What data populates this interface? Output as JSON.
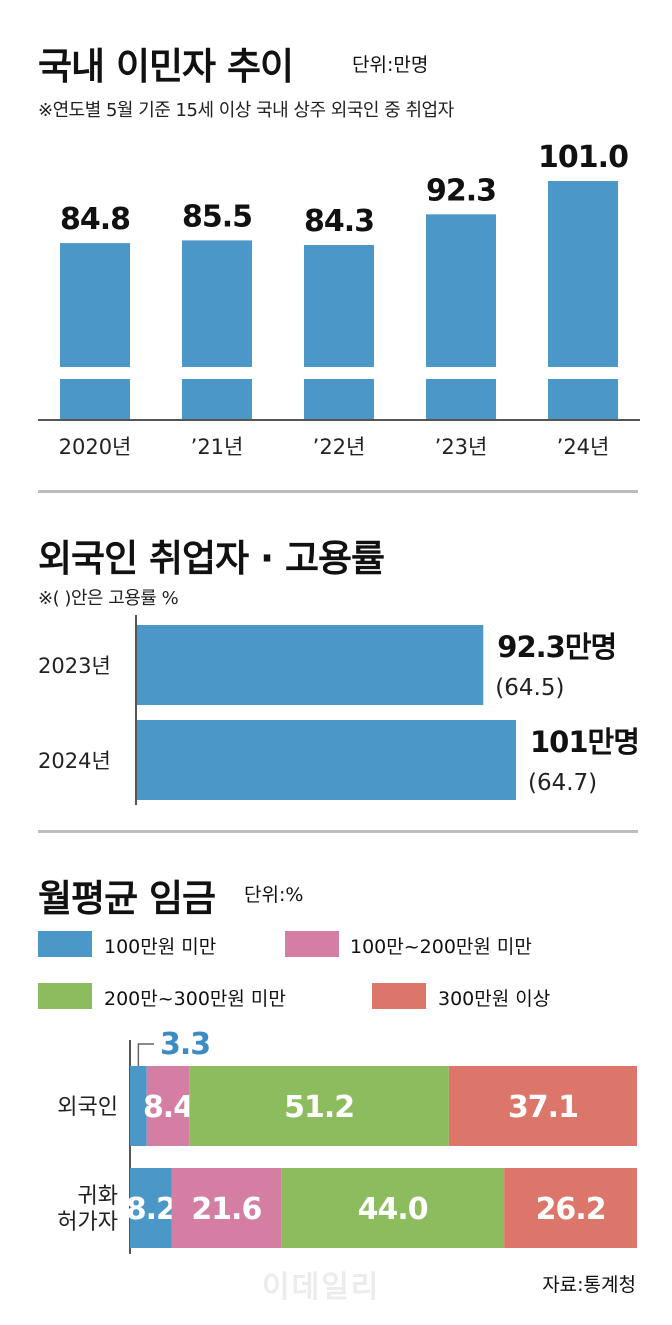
{
  "colors": {
    "blue": "#4a97c8",
    "pink": "#d47ea3",
    "green": "#8dbc5e",
    "red": "#dc766a",
    "label_blue": "#3b8cc4",
    "axis": "#555555"
  },
  "chart_data": [
    {
      "type": "bar",
      "title": "국내 이민자 추이",
      "unit": "단위:만명",
      "note": "※연도별 5월 기준 15세 이상 국내 상주 외국인 중 취업자",
      "categories": [
        "2020년",
        "’21년",
        "’22년",
        "’23년",
        "’24년"
      ],
      "values": [
        84.8,
        85.5,
        84.3,
        92.3,
        101.0
      ],
      "value_labels": [
        "84.8",
        "85.5",
        "84.3",
        "92.3",
        "101.0"
      ],
      "axis_break": true,
      "legend": "none"
    },
    {
      "type": "bar",
      "orientation": "horizontal",
      "title": "외국인 취업자 · 고용률",
      "note": "※(   )안은 고용률 %",
      "categories": [
        "2023년",
        "2024년"
      ],
      "values": [
        92.3,
        101.0
      ],
      "value_labels": [
        "92.3만명",
        "101만명"
      ],
      "employment_rate": [
        64.5,
        64.7
      ],
      "rate_labels": [
        "(64.5)",
        "(64.7)"
      ],
      "legend": "none"
    },
    {
      "type": "bar",
      "orientation": "horizontal",
      "stacked": true,
      "title": "월평균 임금",
      "unit": "단위:%",
      "categories": [
        "외국인",
        "귀화\n허가자"
      ],
      "category_lines": [
        [
          "외국인"
        ],
        [
          "귀화",
          "허가자"
        ]
      ],
      "series": [
        {
          "name": "100만원 미만",
          "color": "#4a97c8",
          "values": [
            3.3,
            8.2
          ],
          "labels": [
            "3.3",
            "8.2"
          ]
        },
        {
          "name": "100만~200만원 미만",
          "color": "#d47ea3",
          "values": [
            8.4,
            21.6
          ],
          "labels": [
            "8.4",
            "21.6"
          ]
        },
        {
          "name": "200만~300만원 미만",
          "color": "#8dbc5e",
          "values": [
            51.2,
            44.0
          ],
          "labels": [
            "51.2",
            "44.0"
          ]
        },
        {
          "name": "300만원 이상",
          "color": "#dc766a",
          "values": [
            37.1,
            26.2
          ],
          "labels": [
            "37.1",
            "26.2"
          ]
        }
      ],
      "legend": "top"
    }
  ],
  "source": "자료:통계청",
  "watermark": "이데일리"
}
